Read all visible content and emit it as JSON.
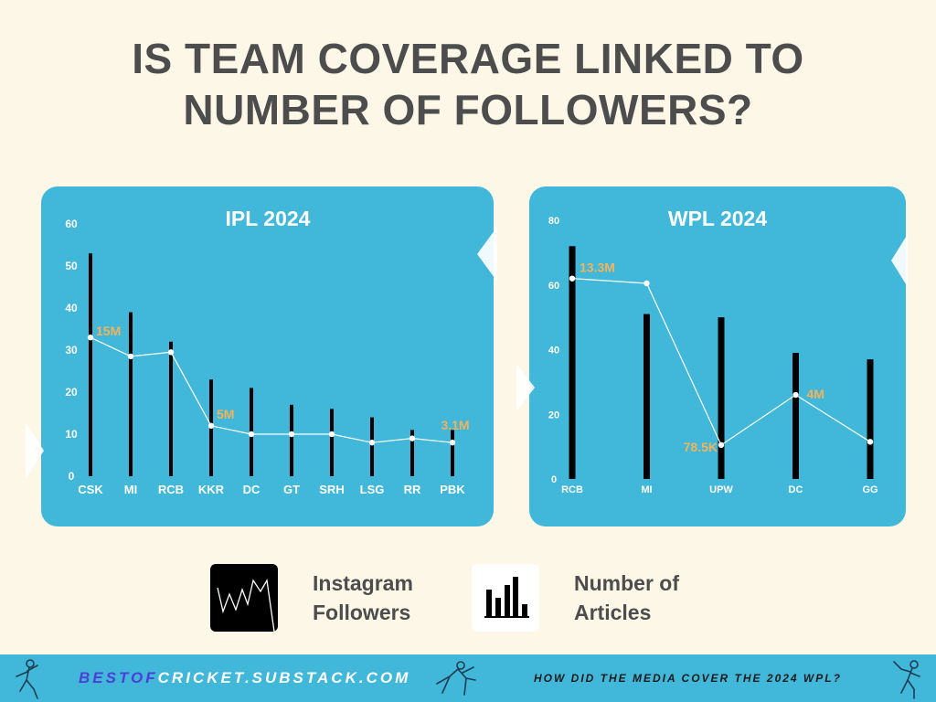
{
  "title": {
    "line1": "IS TEAM COVERAGE LINKED TO",
    "line2": "NUMBER OF FOLLOWERS?"
  },
  "colors": {
    "background": "#fdf7e8",
    "panel": "#41b7d9",
    "bar": "#000000",
    "line": "#ffffff",
    "annotation": "#f2b35c",
    "title_text": "#4d4d4d"
  },
  "chart_data": [
    {
      "type": "bar",
      "title": "IPL 2024",
      "categories": [
        "CSK",
        "MI",
        "RCB",
        "KKR",
        "DC",
        "GT",
        "SRH",
        "LSG",
        "RR",
        "PBK"
      ],
      "ylim": [
        0,
        60
      ],
      "yticks": [
        "0",
        "10",
        "20",
        "30",
        "40",
        "50",
        "60"
      ],
      "series": [
        {
          "name": "Number of Articles",
          "type": "bar",
          "values": [
            53,
            39,
            32,
            23,
            21,
            17,
            16,
            14,
            11,
            11
          ]
        },
        {
          "name": "Instagram Followers",
          "type": "line",
          "values": [
            33,
            28.5,
            29.5,
            12,
            10,
            10,
            10,
            8,
            9,
            8
          ]
        }
      ],
      "annotations": [
        {
          "index": 0,
          "text": "15M"
        },
        {
          "index": 3,
          "text": "5M"
        },
        {
          "index": 9,
          "text": "3.1M"
        }
      ]
    },
    {
      "type": "bar",
      "title": "WPL 2024",
      "categories": [
        "RCB",
        "MI",
        "UPW",
        "DC",
        "GG"
      ],
      "ylim": [
        0,
        80
      ],
      "yticks": [
        "0",
        "20",
        "40",
        "60",
        "80"
      ],
      "series": [
        {
          "name": "Number of Articles",
          "type": "bar",
          "values": [
            72,
            51,
            50,
            39,
            37
          ]
        },
        {
          "name": "Instagram Followers",
          "type": "line",
          "values": [
            62,
            60.5,
            10.5,
            26,
            11.5
          ]
        }
      ],
      "annotations": [
        {
          "index": 0,
          "text": "13.3M"
        },
        {
          "index": 2,
          "text": "78.5K"
        },
        {
          "index": 3,
          "text": "4M"
        }
      ]
    }
  ],
  "legend": {
    "followers": {
      "line1": "Instagram",
      "line2": "Followers",
      "icon": "line-chart-icon"
    },
    "articles": {
      "line1": "Number of",
      "line2": "Articles",
      "icon": "bar-chart-icon"
    }
  },
  "footer": {
    "site_part1": "BESTOF",
    "site_part2": "CRICKET",
    "site_part3": ".SUBSTACK.COM",
    "tagline": "HOW DID THE MEDIA COVER THE 2024 WPL?",
    "icons": [
      "cricketer-bowler-icon",
      "cricketer-diving-icon",
      "cricketer-batsman-icon"
    ]
  }
}
